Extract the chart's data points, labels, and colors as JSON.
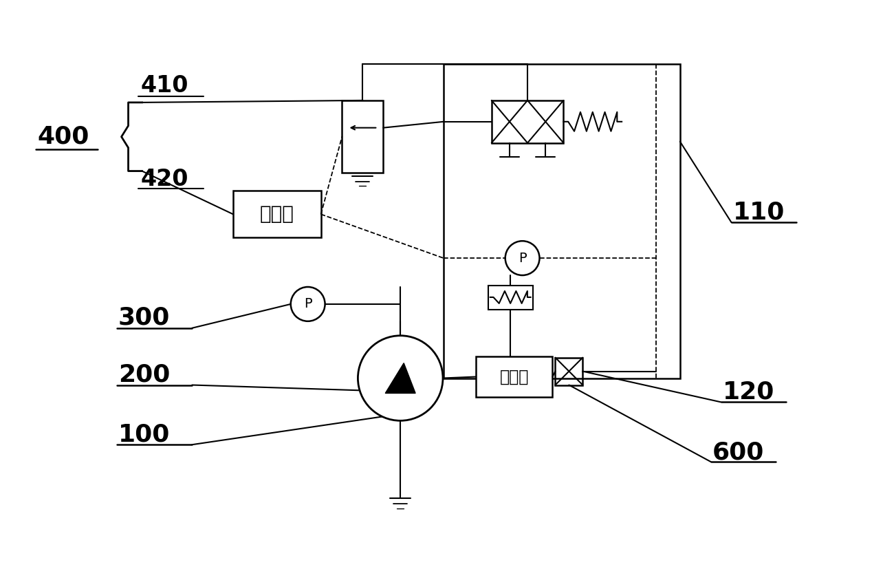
{
  "bg_color": "#ffffff",
  "lc": "#000000",
  "label_400": "400",
  "label_410": "410",
  "label_420": "420",
  "label_110": "110",
  "label_120": "120",
  "label_200": "200",
  "label_300": "300",
  "label_100": "100",
  "label_600": "600",
  "label_controller": "控制器",
  "label_motor": "电动机"
}
